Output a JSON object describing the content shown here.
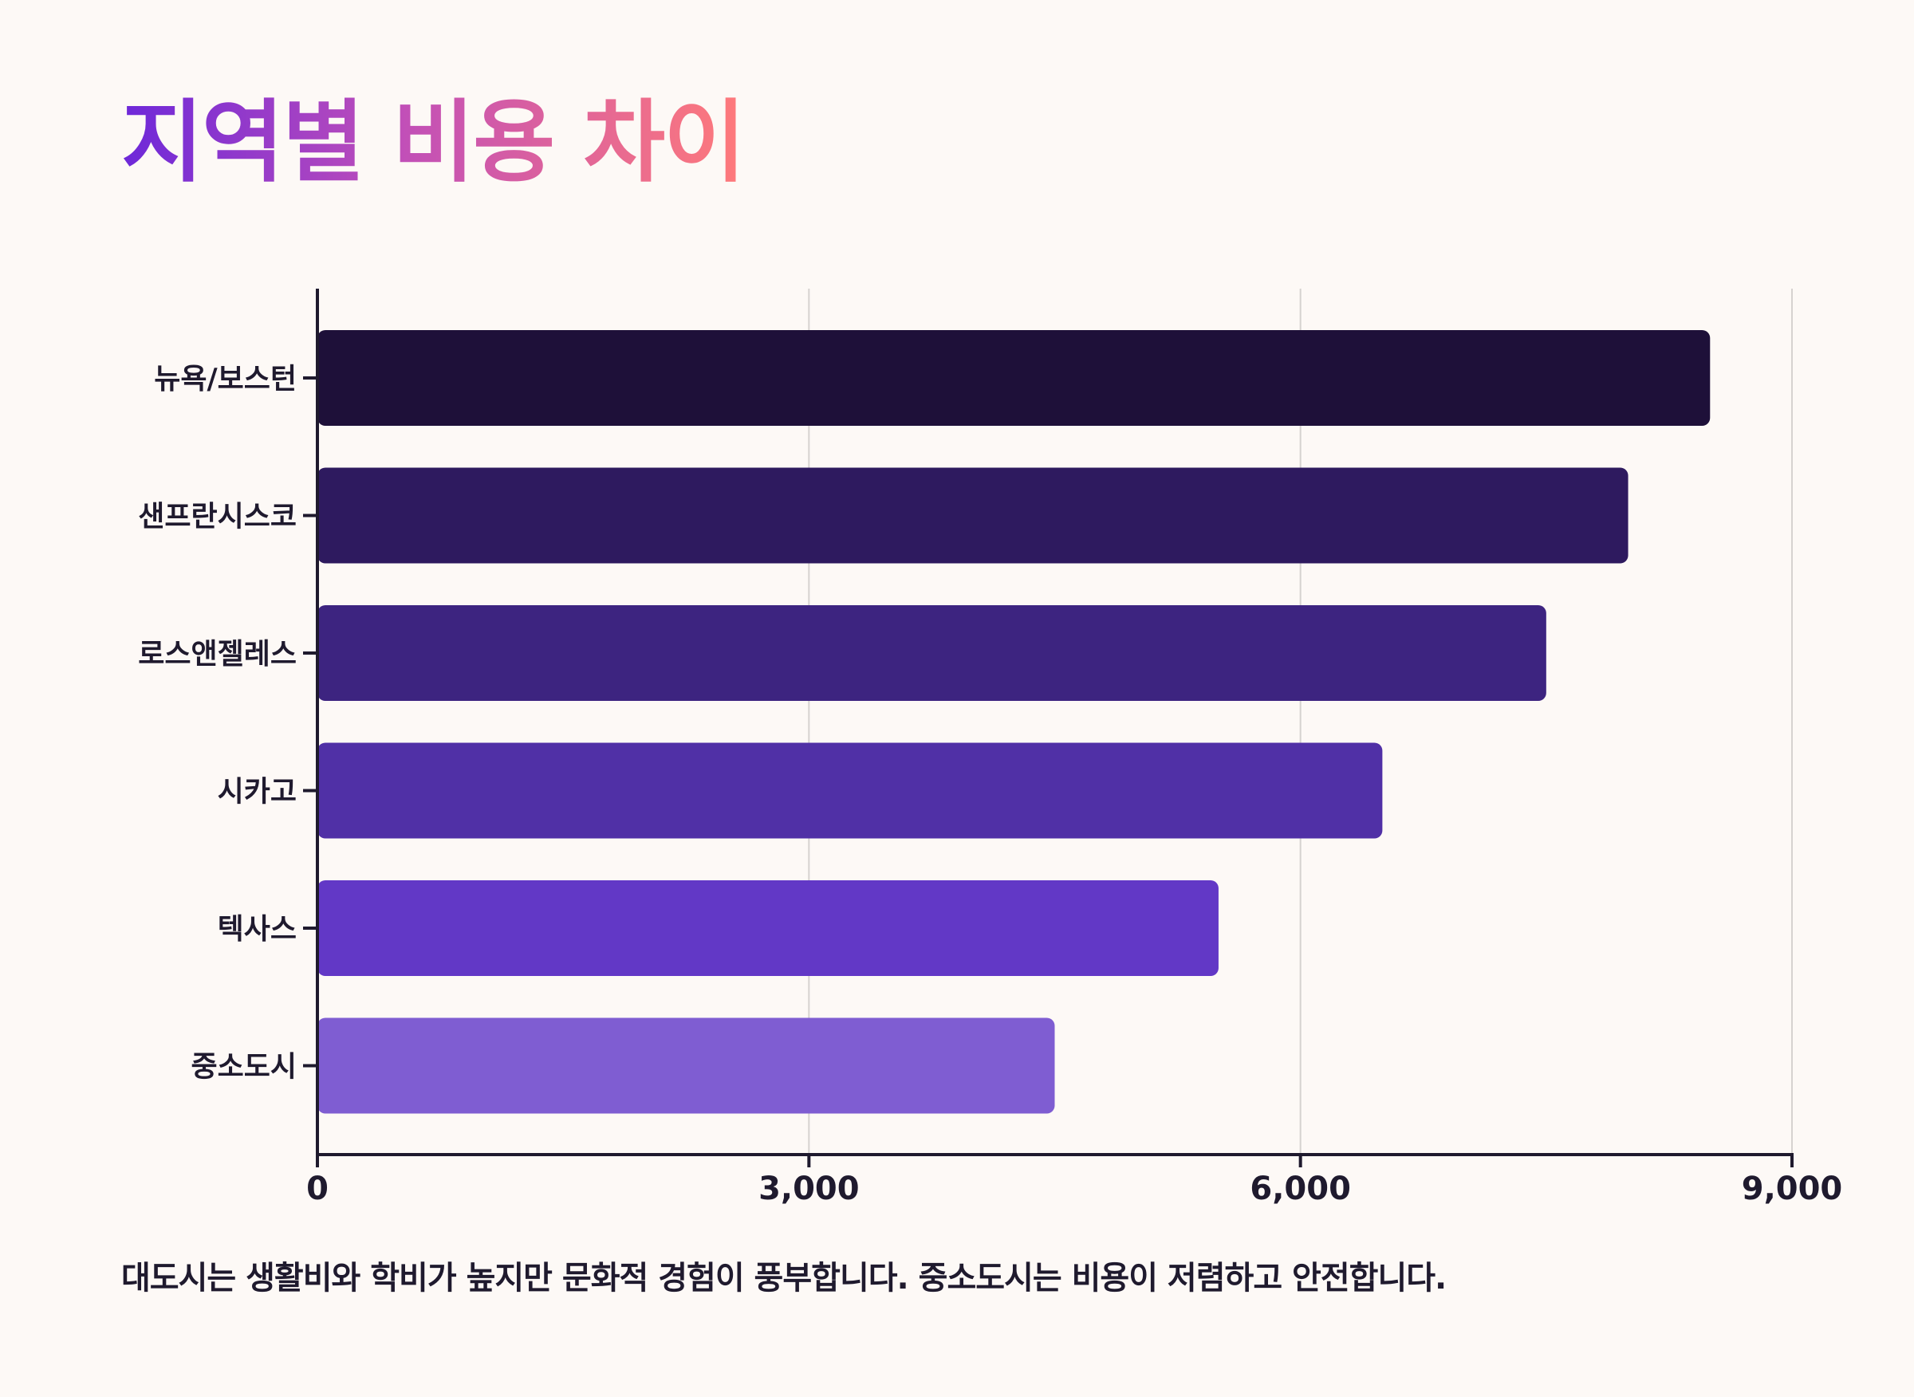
{
  "title": "지역별 비용 차이",
  "caption": "대도시는 생활비와 학비가 높지만 문화적 경험이 풍부합니다. 중소도시는 비용이 저렴하고 안전합니다.",
  "colors": {
    "background": "#fdf9f6",
    "axis": "#1f1a2e",
    "grid": "#d6d2d0",
    "bars": [
      "#1e1039",
      "#2e1a5f",
      "#3d2480",
      "#5030a6",
      "#6238c6",
      "#7f5dd2"
    ]
  },
  "chart_data": {
    "type": "bar",
    "orientation": "horizontal",
    "categories": [
      "뉴욕/보스턴",
      "샌프란시스코",
      "로스앤젤레스",
      "시카고",
      "텍사스",
      "중소도시"
    ],
    "values": [
      8500,
      8000,
      7500,
      6500,
      5500,
      4500
    ],
    "xlim": [
      0,
      9000
    ],
    "xticks": [
      0,
      3000,
      6000,
      9000
    ],
    "xtick_labels": [
      "0",
      "3,000",
      "6,000",
      "9,000"
    ],
    "title": "",
    "xlabel": "",
    "ylabel": "",
    "grid": "vertical",
    "legend": "none"
  }
}
